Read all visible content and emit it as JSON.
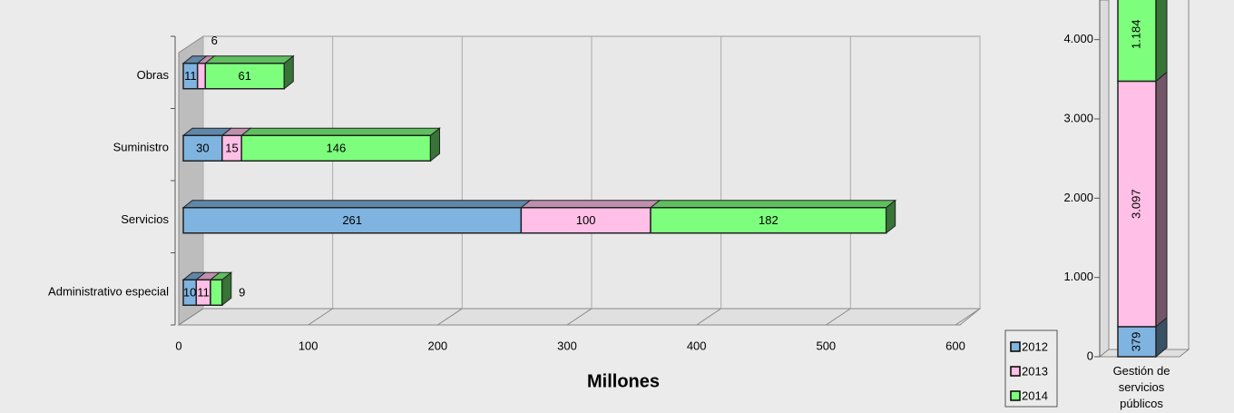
{
  "chart_data": [
    {
      "type": "hbar-stacked",
      "categories": [
        "Administrativo especial",
        "Servicios",
        "Suministro",
        "Obras"
      ],
      "series": [
        {
          "name": "2012",
          "color": "#7fb4e0",
          "values": [
            10,
            261,
            30,
            11
          ]
        },
        {
          "name": "2013",
          "color": "#ffbfe6",
          "values": [
            11,
            100,
            15,
            6
          ]
        },
        {
          "name": "2014",
          "color": "#7dff7d",
          "values": [
            9,
            182,
            146,
            61
          ]
        }
      ],
      "xlim": [
        0,
        600
      ],
      "xticks": [
        0,
        100,
        200,
        300,
        400,
        500,
        600
      ],
      "x_label": "Millones",
      "grid": true
    },
    {
      "type": "vbar-stacked",
      "categories": [
        "Gestión de servicios públicos"
      ],
      "series": [
        {
          "color": "#7fb4e0",
          "values": [
            379
          ],
          "value_labels": [
            "379"
          ]
        },
        {
          "color": "#ffbfe6",
          "values": [
            3097
          ],
          "value_labels": [
            "3.097"
          ]
        },
        {
          "color": "#7dff7d",
          "values": [
            1184
          ],
          "value_labels": [
            "1.184"
          ]
        }
      ],
      "ylim": [
        0,
        4500
      ],
      "yticks": [
        0,
        {
          "value": 1000,
          "label": "1.000"
        },
        {
          "value": 2000,
          "label": "2.000"
        },
        {
          "value": 3000,
          "label": "3.000"
        },
        {
          "value": 4000,
          "label": "4.000"
        }
      ]
    }
  ]
}
